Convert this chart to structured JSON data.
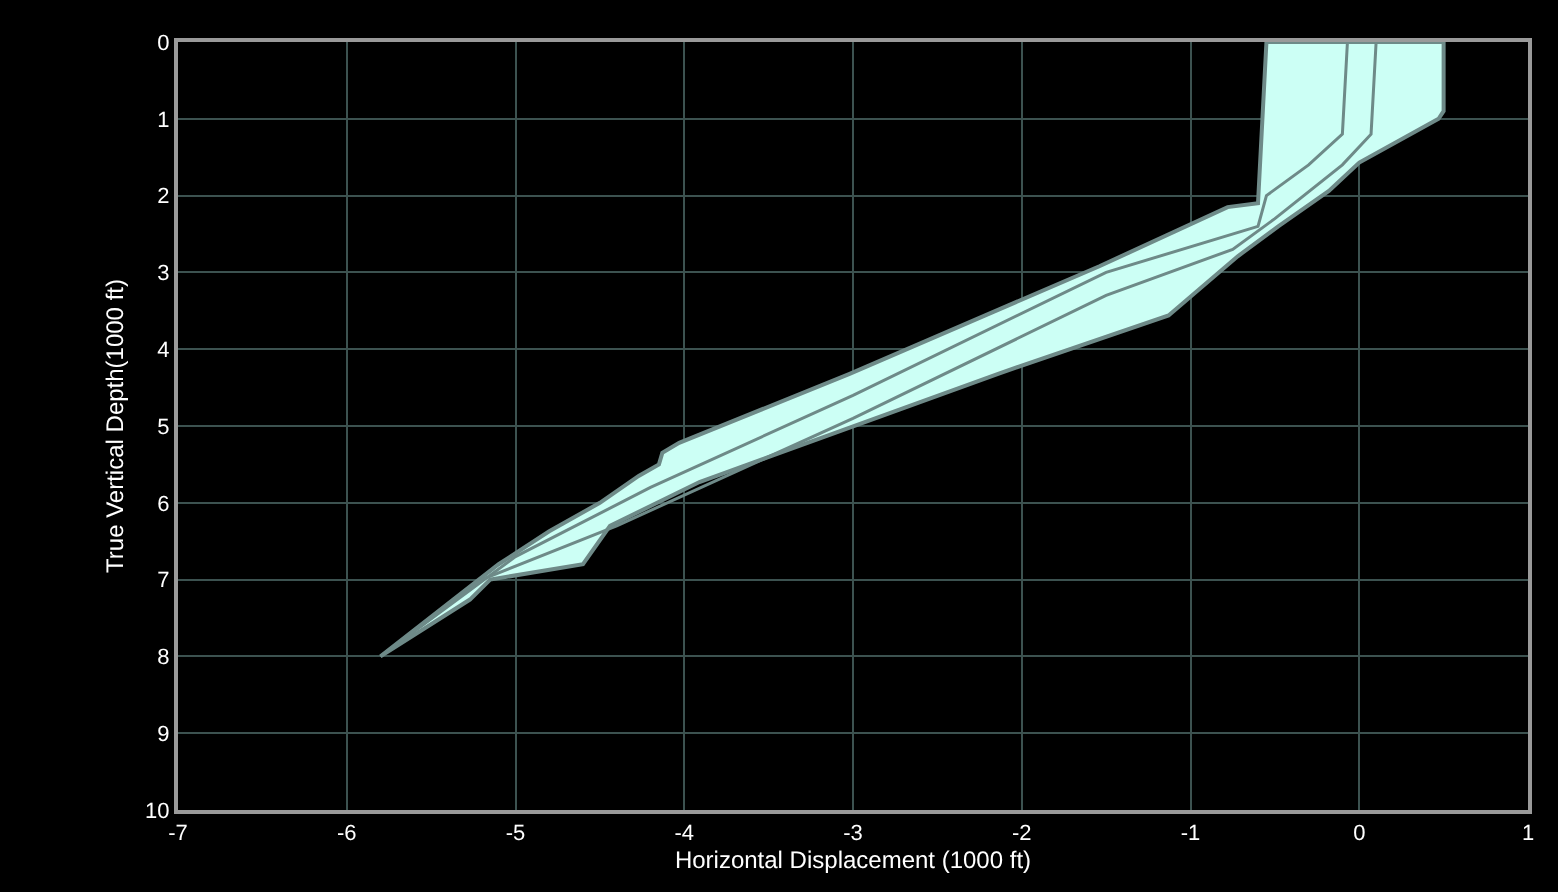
{
  "chart_data": {
    "type": "area",
    "xlabel": "Horizontal Displacement (1000 ft)",
    "ylabel": "True Vertical Depth(1000 ft)",
    "xlim": [
      -7,
      1
    ],
    "xticks": [
      -7,
      -6,
      -5,
      -4,
      -3,
      -2,
      -1,
      0,
      1
    ],
    "ylim": [
      10,
      0
    ],
    "yticks": [
      0,
      1,
      2,
      3,
      4,
      5,
      6,
      7,
      8,
      9,
      10
    ],
    "grid": true,
    "series": [
      {
        "color": "#ccfff5",
        "x": [
          -0.55,
          0.5,
          0.5,
          0.47,
          0,
          -0.18,
          -0.48,
          -0.72,
          -1.13,
          -2.14,
          -3.91,
          -4.44,
          -4.6,
          -5.15,
          -5.27,
          -5.8,
          -5.1,
          -4.8,
          -4.5,
          -4.27,
          -4.15,
          -4.13,
          -4.03,
          -3.02,
          -1.54,
          -0.78,
          -0.6,
          -0.55
        ],
        "values": [
          0,
          0,
          0.9,
          1.0,
          1.57,
          1.94,
          2.4,
          2.79,
          3.56,
          4.32,
          5.73,
          6.3,
          6.8,
          7.0,
          7.26,
          8.0,
          6.8,
          6.37,
          6.0,
          5.65,
          5.5,
          5.35,
          5.22,
          4.32,
          2.92,
          2.15,
          2.1,
          0
        ]
      },
      {
        "type": "line",
        "color": "#6e8a88",
        "x": [
          -0.07,
          -0.1,
          -0.3,
          -0.55,
          -0.6,
          -1.5,
          -3.0,
          -4.2,
          -5.0,
          -5.8
        ],
        "values": [
          0,
          1.2,
          1.6,
          2.0,
          2.4,
          3.0,
          4.6,
          5.8,
          6.7,
          8.0
        ]
      },
      {
        "type": "line",
        "color": "#6e8a88",
        "x": [
          0.1,
          0.07,
          -0.1,
          -0.5,
          -0.75,
          -1.5,
          -3.0,
          -4.4,
          -5.2,
          -5.8
        ],
        "values": [
          0,
          1.2,
          1.6,
          2.3,
          2.7,
          3.3,
          4.9,
          6.3,
          7.0,
          8.0
        ]
      }
    ]
  }
}
